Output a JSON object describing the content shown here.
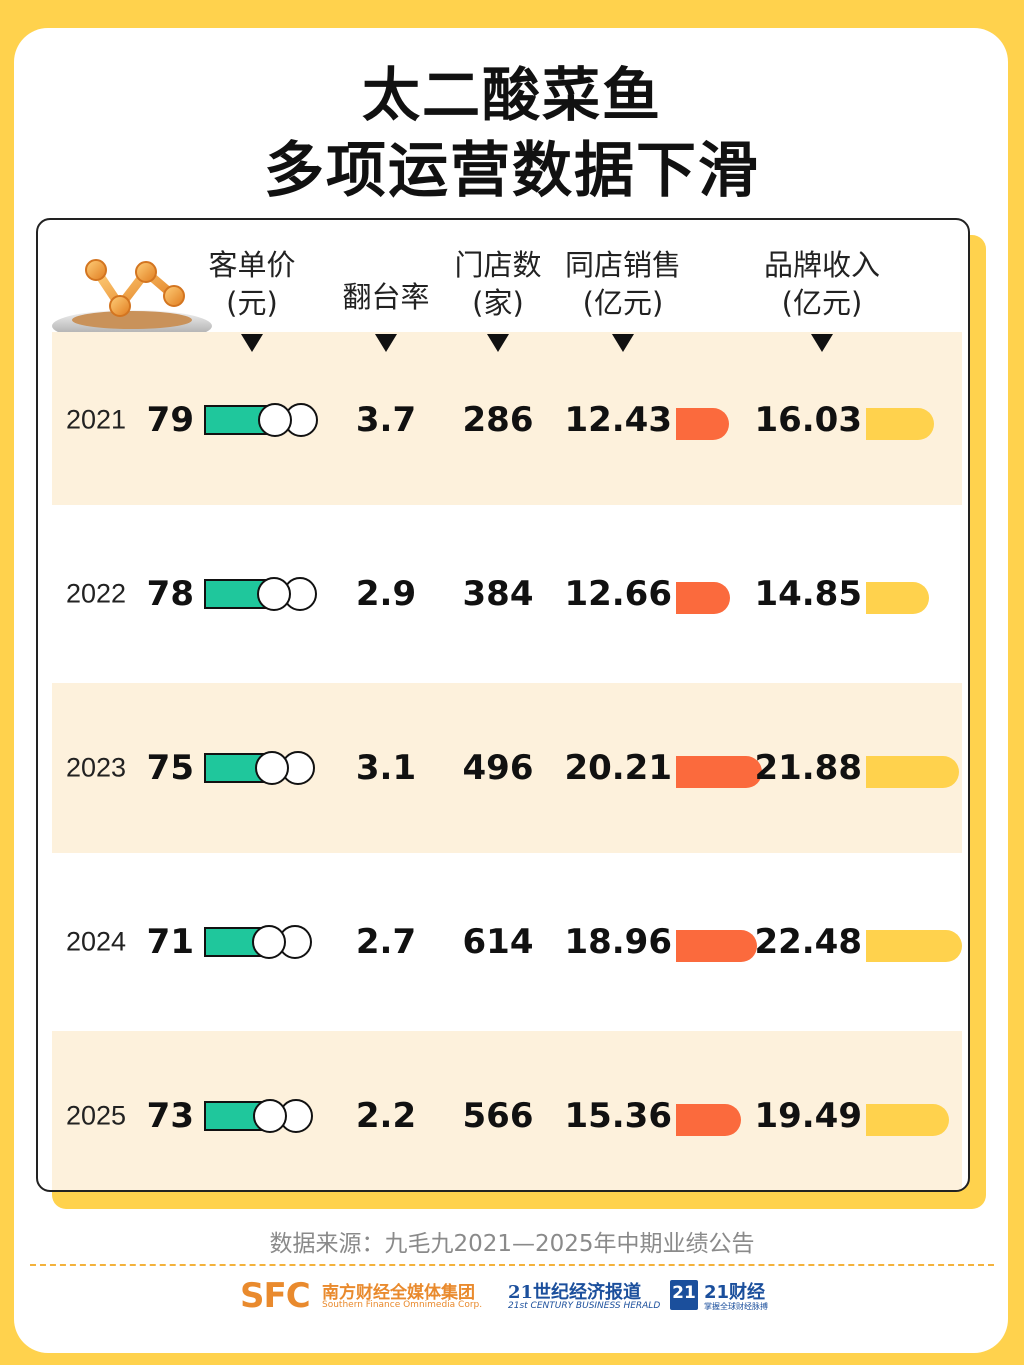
{
  "title_line1": "太二酸菜鱼",
  "title_line2": "多项运营数据下滑",
  "source": "数据来源：九毛九2021—2025年中期业绩公告",
  "logos": {
    "sfc_mark": "SFC",
    "sfc_cn": "南方财经全媒体集团",
    "sfc_en": "Southern Finance Omnimedia Corp.",
    "c21_cn": "21世纪经济报道",
    "c21_en": "21st CENTURY BUSINESS HERALD",
    "cj_box": "21",
    "cj_cn": "21财经",
    "cj_sub": "掌握全球财经脉搏"
  },
  "colors": {
    "background": "#ffd24d",
    "band": "#fdf1dc",
    "toggle": "#1fc79c",
    "same_store_bar": "#fb6a3d",
    "brand_bar": "#ffd24d"
  },
  "chart_data": {
    "type": "table",
    "columns": [
      {
        "key": "ticket",
        "line1": "客单价",
        "line2": "(元)"
      },
      {
        "key": "turnover",
        "line1": "翻台率",
        "line2": ""
      },
      {
        "key": "stores",
        "line1": "门店数",
        "line2": "(家)"
      },
      {
        "key": "same_store",
        "line1": "同店销售",
        "line2": "(亿元)"
      },
      {
        "key": "brand",
        "line1": "品牌收入",
        "line2": "(亿元)"
      }
    ],
    "rows": [
      {
        "year": "2021",
        "ticket": "79",
        "turnover": "3.7",
        "stores": "286",
        "same_store": "12.43",
        "brand": "16.03"
      },
      {
        "year": "2022",
        "ticket": "78",
        "turnover": "2.9",
        "stores": "384",
        "same_store": "12.66",
        "brand": "14.85"
      },
      {
        "year": "2023",
        "ticket": "75",
        "turnover": "3.1",
        "stores": "496",
        "same_store": "20.21",
        "brand": "21.88"
      },
      {
        "year": "2024",
        "ticket": "71",
        "turnover": "2.7",
        "stores": "614",
        "same_store": "18.96",
        "brand": "22.48"
      },
      {
        "year": "2025",
        "ticket": "73",
        "turnover": "2.2",
        "stores": "566",
        "same_store": "15.36",
        "brand": "19.49"
      }
    ]
  }
}
